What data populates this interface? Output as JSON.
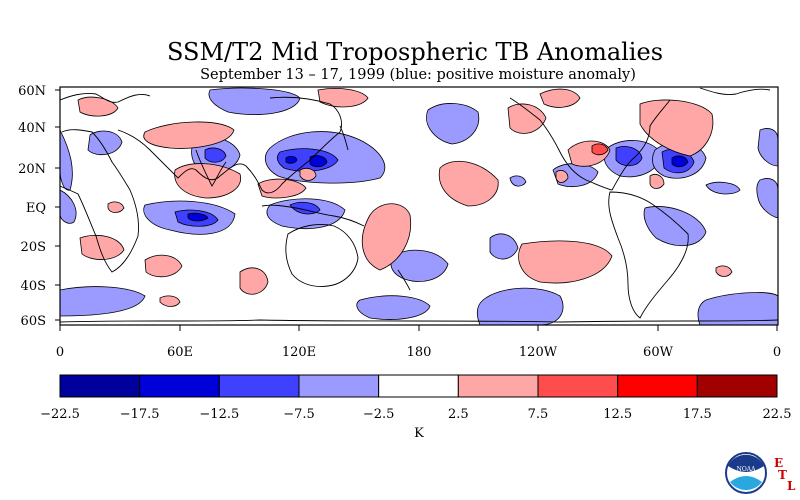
{
  "header": {
    "title": "SSM/T2 Mid Tropospheric TB Anomalies",
    "subtitle": "September 13 – 17, 1999 (blue: positive moisture anomaly)"
  },
  "map": {
    "lat_labels": [
      "60N",
      "40N",
      "20N",
      "EQ",
      "20S",
      "40S",
      "60S"
    ],
    "lon_labels": [
      "0",
      "60E",
      "120E",
      "180",
      "120W",
      "60W",
      "0"
    ],
    "anomaly_colors": {
      "neg_22_5": "#00009c",
      "neg_17_5": "#0000d9",
      "neg_12_5": "#4040ff",
      "neg_7_5": "#9a9aff",
      "near_zero": "#ffffff",
      "pos_7_5": "#ffa6a6",
      "pos_12_5": "#ff4c4c",
      "pos_17_5": "#ff0000",
      "pos_22_5": "#a10000"
    }
  },
  "legend": {
    "ticks": [
      "−22.5",
      "−17.5",
      "−12.5",
      "−7.5",
      "−2.5",
      "2.5",
      "7.5",
      "12.5",
      "17.5",
      "22.5"
    ],
    "colors": [
      "#00009c",
      "#0000d9",
      "#4040ff",
      "#9a9aff",
      "#ffffff",
      "#ffa6a6",
      "#ff4c4c",
      "#ff0000",
      "#a10000"
    ],
    "unit": "K"
  },
  "logo": {
    "noaa_text": "NOAA",
    "etl_letters": [
      "E",
      "T",
      "L"
    ]
  }
}
